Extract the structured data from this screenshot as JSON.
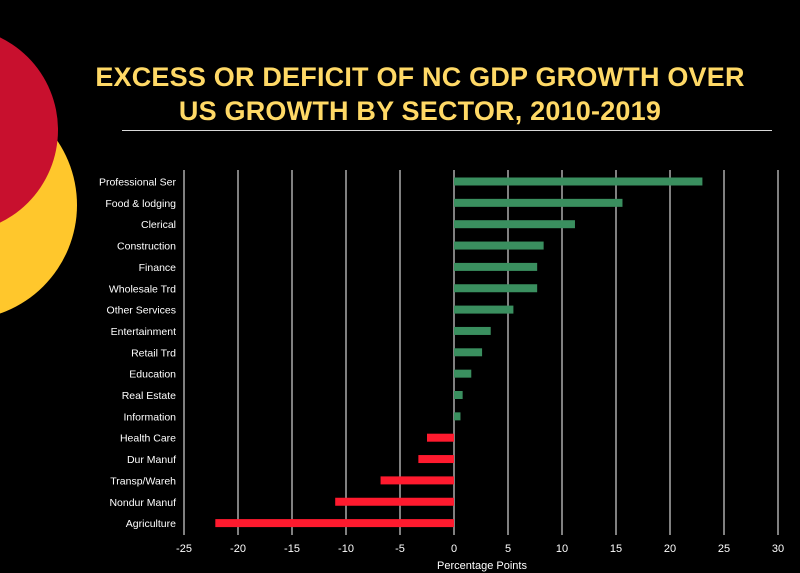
{
  "slide": {
    "title_line1": "EXCESS OR DEFICIT OF NC GDP GROWTH OVER",
    "title_line2": "US GROWTH BY SECTOR, 2010-2019"
  },
  "colors": {
    "background": "#000000",
    "title": "#FFD966",
    "positive_bar": "#3A8F5F",
    "negative_bar": "#FF1A2E",
    "grid": "#FFFFFF",
    "text": "#FFFFFF",
    "deco_red": "#C8102E",
    "deco_yellow": "#FFC72C"
  },
  "chart_data": {
    "type": "bar",
    "orientation": "horizontal",
    "title": "EXCESS OR DEFICIT OF NC GDP GROWTH OVER US GROWTH BY SECTOR, 2010-2019",
    "xlabel": "Percentage Points",
    "ylabel": "",
    "xlim": [
      -25,
      30
    ],
    "xticks": [
      -25,
      -20,
      -15,
      -10,
      -5,
      0,
      5,
      10,
      15,
      20,
      25,
      30
    ],
    "grid": true,
    "categories": [
      "Professional Ser",
      "Food & lodging",
      "Clerical",
      "Construction",
      "Finance",
      "Wholesale Trd",
      "Other Services",
      "Entertainment",
      "Retail Trd",
      "Education",
      "Real Estate",
      "Information",
      "Health Care",
      "Dur Manuf",
      "Transp/Wareh",
      "Nondur Manuf",
      "Agriculture"
    ],
    "values": [
      23.0,
      15.6,
      11.2,
      8.3,
      7.7,
      7.7,
      5.5,
      3.4,
      2.6,
      1.6,
      0.8,
      0.6,
      -2.5,
      -3.3,
      -6.8,
      -11.0,
      -22.1
    ]
  }
}
